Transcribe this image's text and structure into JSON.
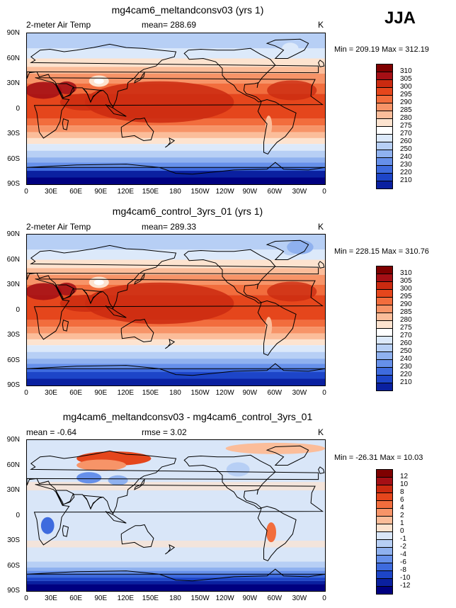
{
  "season": "JJA",
  "panels": [
    {
      "title": "mg4cam6_meltandconsv03 (yrs 1)",
      "left_label": "2-meter Air Temp",
      "mid_label": "mean= 288.69",
      "right_label": "",
      "units": "K",
      "minmax": "Min = 209.19 Max = 312.19",
      "colorbar_labels": [
        "310",
        "305",
        "300",
        "295",
        "290",
        "285",
        "280",
        "275",
        "270",
        "260",
        "250",
        "240",
        "230",
        "220",
        "210"
      ]
    },
    {
      "title": "mg4cam6_control_3yrs_01 (yrs 1)",
      "left_label": "2-meter Air Temp",
      "mid_label": "mean= 289.33",
      "right_label": "",
      "units": "K",
      "minmax": "Min = 228.15 Max = 310.76",
      "colorbar_labels": [
        "310",
        "305",
        "300",
        "295",
        "290",
        "285",
        "280",
        "275",
        "270",
        "260",
        "250",
        "240",
        "230",
        "220",
        "210"
      ]
    },
    {
      "title": "mg4cam6_meltandconsv03 - mg4cam6_control_3yrs_01",
      "left_label": "mean =  -0.64",
      "mid_label": "rmse =    3.02",
      "right_label": "",
      "units": "K",
      "minmax": "Min = -26.31 Max =  10.03",
      "colorbar_labels": [
        "12",
        "10",
        "8",
        "6",
        "4",
        "2",
        "1",
        "0",
        "-1",
        "-2",
        "-4",
        "-6",
        "-8",
        "-10",
        "-12"
      ]
    }
  ],
  "lat_labels": [
    "90N",
    "60N",
    "30N",
    "0",
    "30S",
    "60S",
    "90S"
  ],
  "lon_labels": [
    "0",
    "30E",
    "60E",
    "90E",
    "120E",
    "150E",
    "180",
    "150W",
    "120W",
    "90W",
    "60W",
    "30W",
    "0"
  ],
  "colors": {
    "abs_scale": [
      "#7f0000",
      "#a50f15",
      "#cb2a10",
      "#e5461c",
      "#f26d3d",
      "#f79468",
      "#fbbd9a",
      "#fde3cf",
      "#ffffff",
      "#dce9fa",
      "#b7cff5",
      "#8fb1ef",
      "#6690ea",
      "#3e6bde",
      "#1d45c8",
      "#0a20a0",
      "#000080"
    ],
    "diff_scale": [
      "#7f0000",
      "#a50f15",
      "#cb2a10",
      "#e5461c",
      "#f26d3d",
      "#f79468",
      "#fbbd9a",
      "#fde3cf",
      "#d9e6f8",
      "#b7cff5",
      "#8fb1ef",
      "#6690ea",
      "#3e6bde",
      "#1d45c8",
      "#0a20a0",
      "#000080"
    ],
    "land_outline": "#000000"
  }
}
